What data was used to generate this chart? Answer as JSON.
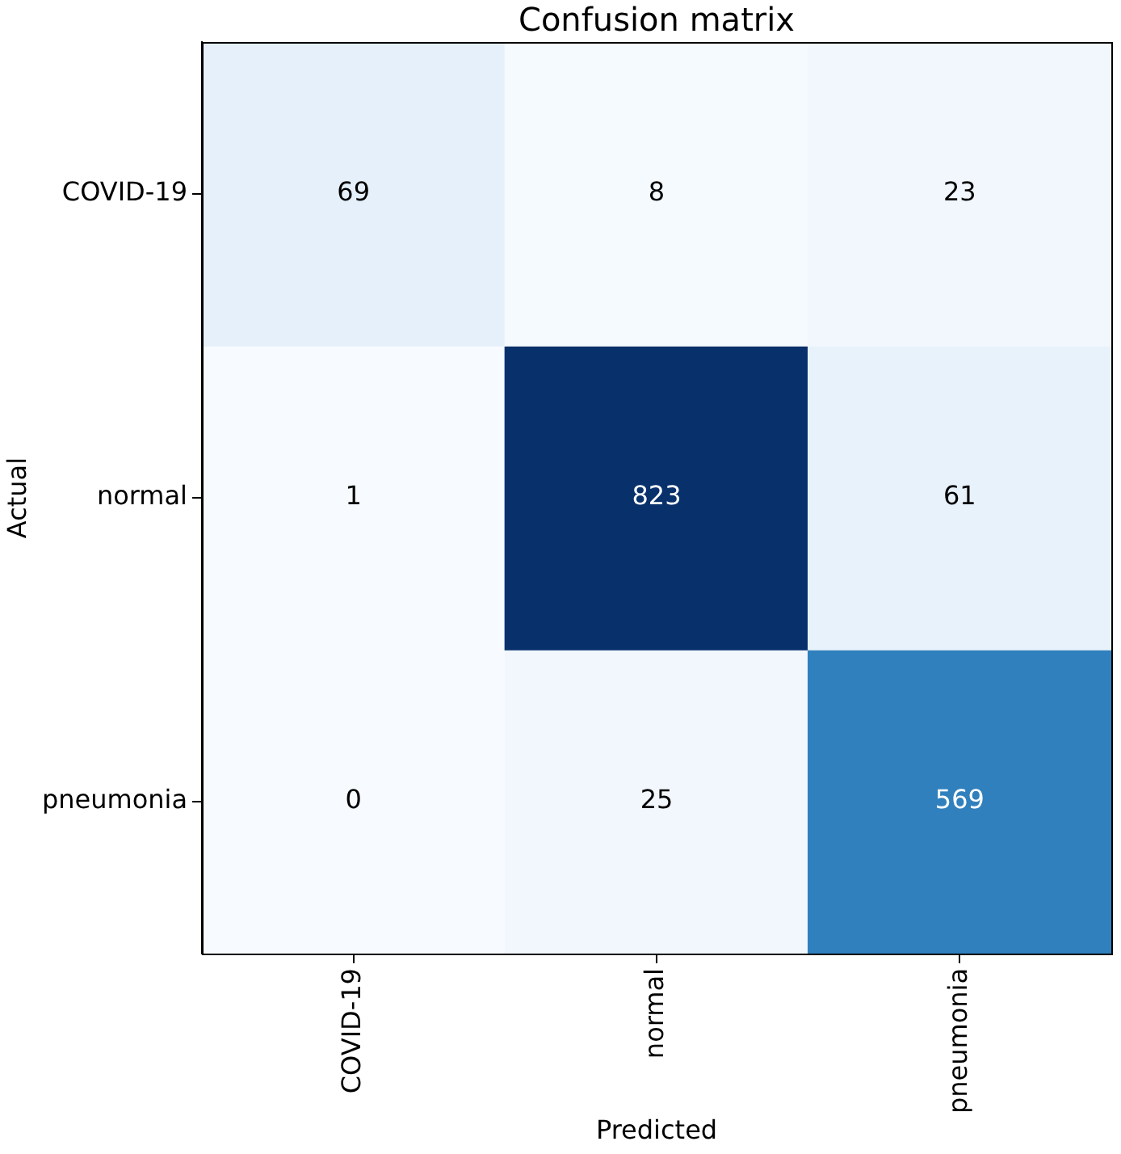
{
  "chart_data": {
    "type": "heatmap",
    "title": "Confusion matrix",
    "xlabel": "Predicted",
    "ylabel": "Actual",
    "categories": [
      "COVID-19",
      "normal",
      "pneumonia"
    ],
    "y_categories": [
      "COVID-19",
      "normal",
      "pneumonia"
    ],
    "cells": [
      [
        69,
        8,
        23
      ],
      [
        1,
        823,
        61
      ],
      [
        0,
        25,
        569
      ]
    ],
    "data_labels": true
  }
}
